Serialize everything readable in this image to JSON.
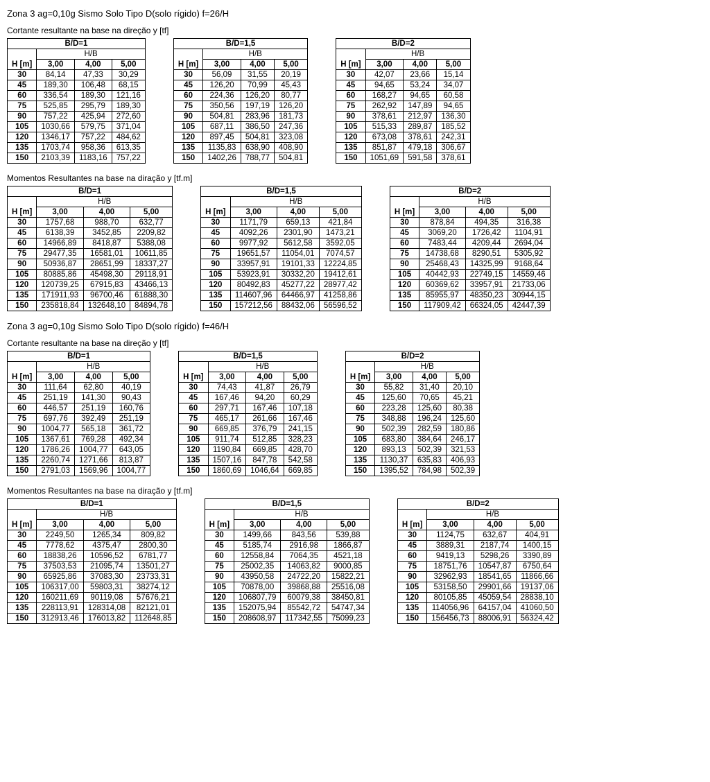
{
  "section1": {
    "title": "Zona 3     ag=0,10g    Sismo Solo Tipo D(solo rígido) f=26/H",
    "sub_cortante": "Cortante resultante na base na direção y [tf]",
    "sub_momentos": "Momentos Resultantes na base na diração y [tf.m]",
    "labels": {
      "hm": "H [m]",
      "hb": "H/B"
    },
    "bd_headers": [
      "B/D=1",
      "B/D=1,5",
      "B/D=2"
    ],
    "col_headers": [
      "3,00",
      "4,00",
      "5,00"
    ],
    "row_headers": [
      "30",
      "45",
      "60",
      "75",
      "90",
      "105",
      "120",
      "135",
      "150"
    ],
    "cortante": [
      [
        [
          "84,14",
          "47,33",
          "30,29"
        ],
        [
          "189,30",
          "106,48",
          "68,15"
        ],
        [
          "336,54",
          "189,30",
          "121,16"
        ],
        [
          "525,85",
          "295,79",
          "189,30"
        ],
        [
          "757,22",
          "425,94",
          "272,60"
        ],
        [
          "1030,66",
          "579,75",
          "371,04"
        ],
        [
          "1346,17",
          "757,22",
          "484,62"
        ],
        [
          "1703,74",
          "958,36",
          "613,35"
        ],
        [
          "2103,39",
          "1183,16",
          "757,22"
        ]
      ],
      [
        [
          "56,09",
          "31,55",
          "20,19"
        ],
        [
          "126,20",
          "70,99",
          "45,43"
        ],
        [
          "224,36",
          "126,20",
          "80,77"
        ],
        [
          "350,56",
          "197,19",
          "126,20"
        ],
        [
          "504,81",
          "283,96",
          "181,73"
        ],
        [
          "687,11",
          "386,50",
          "247,36"
        ],
        [
          "897,45",
          "504,81",
          "323,08"
        ],
        [
          "1135,83",
          "638,90",
          "408,90"
        ],
        [
          "1402,26",
          "788,77",
          "504,81"
        ]
      ],
      [
        [
          "42,07",
          "23,66",
          "15,14"
        ],
        [
          "94,65",
          "53,24",
          "34,07"
        ],
        [
          "168,27",
          "94,65",
          "60,58"
        ],
        [
          "262,92",
          "147,89",
          "94,65"
        ],
        [
          "378,61",
          "212,97",
          "136,30"
        ],
        [
          "515,33",
          "289,87",
          "185,52"
        ],
        [
          "673,08",
          "378,61",
          "242,31"
        ],
        [
          "851,87",
          "479,18",
          "306,67"
        ],
        [
          "1051,69",
          "591,58",
          "378,61"
        ]
      ]
    ],
    "momentos": [
      [
        [
          "1757,68",
          "988,70",
          "632,77"
        ],
        [
          "6138,39",
          "3452,85",
          "2209,82"
        ],
        [
          "14966,89",
          "8418,87",
          "5388,08"
        ],
        [
          "29477,35",
          "16581,01",
          "10611,85"
        ],
        [
          "50936,87",
          "28651,99",
          "18337,27"
        ],
        [
          "80885,86",
          "45498,30",
          "29118,91"
        ],
        [
          "120739,25",
          "67915,83",
          "43466,13"
        ],
        [
          "171911,93",
          "96700,46",
          "61888,30"
        ],
        [
          "235818,84",
          "132648,10",
          "84894,78"
        ]
      ],
      [
        [
          "1171,79",
          "659,13",
          "421,84"
        ],
        [
          "4092,26",
          "2301,90",
          "1473,21"
        ],
        [
          "9977,92",
          "5612,58",
          "3592,05"
        ],
        [
          "19651,57",
          "11054,01",
          "7074,57"
        ],
        [
          "33957,91",
          "19101,33",
          "12224,85"
        ],
        [
          "53923,91",
          "30332,20",
          "19412,61"
        ],
        [
          "80492,83",
          "45277,22",
          "28977,42"
        ],
        [
          "114607,96",
          "64466,97",
          "41258,86"
        ],
        [
          "157212,56",
          "88432,06",
          "56596,52"
        ]
      ],
      [
        [
          "878,84",
          "494,35",
          "316,38"
        ],
        [
          "3069,20",
          "1726,42",
          "1104,91"
        ],
        [
          "7483,44",
          "4209,44",
          "2694,04"
        ],
        [
          "14738,68",
          "8290,51",
          "5305,92"
        ],
        [
          "25468,43",
          "14325,99",
          "9168,64"
        ],
        [
          "40442,93",
          "22749,15",
          "14559,46"
        ],
        [
          "60369,62",
          "33957,91",
          "21733,06"
        ],
        [
          "85955,97",
          "48350,23",
          "30944,15"
        ],
        [
          "117909,42",
          "66324,05",
          "42447,39"
        ]
      ]
    ]
  },
  "section2": {
    "title": "Zona 3     ag=0,10g    Sismo Solo Tipo D(solo rígido) f=46/H",
    "sub_cortante": "Cortante resultante na base na direção y [tf]",
    "sub_momentos": "Momentos Resultantes na base na diração y [tf.m]",
    "labels": {
      "hm": "H [m]",
      "hb": "H/B"
    },
    "bd_headers": [
      "B/D=1",
      "B/D=1,5",
      "B/D=2"
    ],
    "col_headers": [
      "3,00",
      "4,00",
      "5,00"
    ],
    "row_headers": [
      "30",
      "45",
      "60",
      "75",
      "90",
      "105",
      "120",
      "135",
      "150"
    ],
    "cortante": [
      [
        [
          "111,64",
          "62,80",
          "40,19"
        ],
        [
          "251,19",
          "141,30",
          "90,43"
        ],
        [
          "446,57",
          "251,19",
          "160,76"
        ],
        [
          "697,76",
          "392,49",
          "251,19"
        ],
        [
          "1004,77",
          "565,18",
          "361,72"
        ],
        [
          "1367,61",
          "769,28",
          "492,34"
        ],
        [
          "1786,26",
          "1004,77",
          "643,05"
        ],
        [
          "2260,74",
          "1271,66",
          "813,87"
        ],
        [
          "2791,03",
          "1569,96",
          "1004,77"
        ]
      ],
      [
        [
          "74,43",
          "41,87",
          "26,79"
        ],
        [
          "167,46",
          "94,20",
          "60,29"
        ],
        [
          "297,71",
          "167,46",
          "107,18"
        ],
        [
          "465,17",
          "261,66",
          "167,46"
        ],
        [
          "669,85",
          "376,79",
          "241,15"
        ],
        [
          "911,74",
          "512,85",
          "328,23"
        ],
        [
          "1190,84",
          "669,85",
          "428,70"
        ],
        [
          "1507,16",
          "847,78",
          "542,58"
        ],
        [
          "1860,69",
          "1046,64",
          "669,85"
        ]
      ],
      [
        [
          "55,82",
          "31,40",
          "20,10"
        ],
        [
          "125,60",
          "70,65",
          "45,21"
        ],
        [
          "223,28",
          "125,60",
          "80,38"
        ],
        [
          "348,88",
          "196,24",
          "125,60"
        ],
        [
          "502,39",
          "282,59",
          "180,86"
        ],
        [
          "683,80",
          "384,64",
          "246,17"
        ],
        [
          "893,13",
          "502,39",
          "321,53"
        ],
        [
          "1130,37",
          "635,83",
          "406,93"
        ],
        [
          "1395,52",
          "784,98",
          "502,39"
        ]
      ]
    ],
    "momentos": [
      [
        [
          "2249,50",
          "1265,34",
          "809,82"
        ],
        [
          "7778,62",
          "4375,47",
          "2800,30"
        ],
        [
          "18838,26",
          "10596,52",
          "6781,77"
        ],
        [
          "37503,53",
          "21095,74",
          "13501,27"
        ],
        [
          "65925,86",
          "37083,30",
          "23733,31"
        ],
        [
          "106317,00",
          "59803,31",
          "38274,12"
        ],
        [
          "160211,69",
          "90119,08",
          "57676,21"
        ],
        [
          "228113,91",
          "128314,08",
          "82121,01"
        ],
        [
          "312913,46",
          "176013,82",
          "112648,85"
        ]
      ],
      [
        [
          "1499,66",
          "843,56",
          "539,88"
        ],
        [
          "5185,74",
          "2916,98",
          "1866,87"
        ],
        [
          "12558,84",
          "7064,35",
          "4521,18"
        ],
        [
          "25002,35",
          "14063,82",
          "9000,85"
        ],
        [
          "43950,58",
          "24722,20",
          "15822,21"
        ],
        [
          "70878,00",
          "39868,88",
          "25516,08"
        ],
        [
          "106807,79",
          "60079,38",
          "38450,81"
        ],
        [
          "152075,94",
          "85542,72",
          "54747,34"
        ],
        [
          "208608,97",
          "117342,55",
          "75099,23"
        ]
      ],
      [
        [
          "1124,75",
          "632,67",
          "404,91"
        ],
        [
          "3889,31",
          "2187,74",
          "1400,15"
        ],
        [
          "9419,13",
          "5298,26",
          "3390,89"
        ],
        [
          "18751,76",
          "10547,87",
          "6750,64"
        ],
        [
          "32962,93",
          "18541,65",
          "11866,66"
        ],
        [
          "53158,50",
          "29901,66",
          "19137,06"
        ],
        [
          "80105,85",
          "45059,54",
          "28838,10"
        ],
        [
          "114056,96",
          "64157,04",
          "41060,50"
        ],
        [
          "156456,73",
          "88006,91",
          "56324,42"
        ]
      ]
    ]
  }
}
